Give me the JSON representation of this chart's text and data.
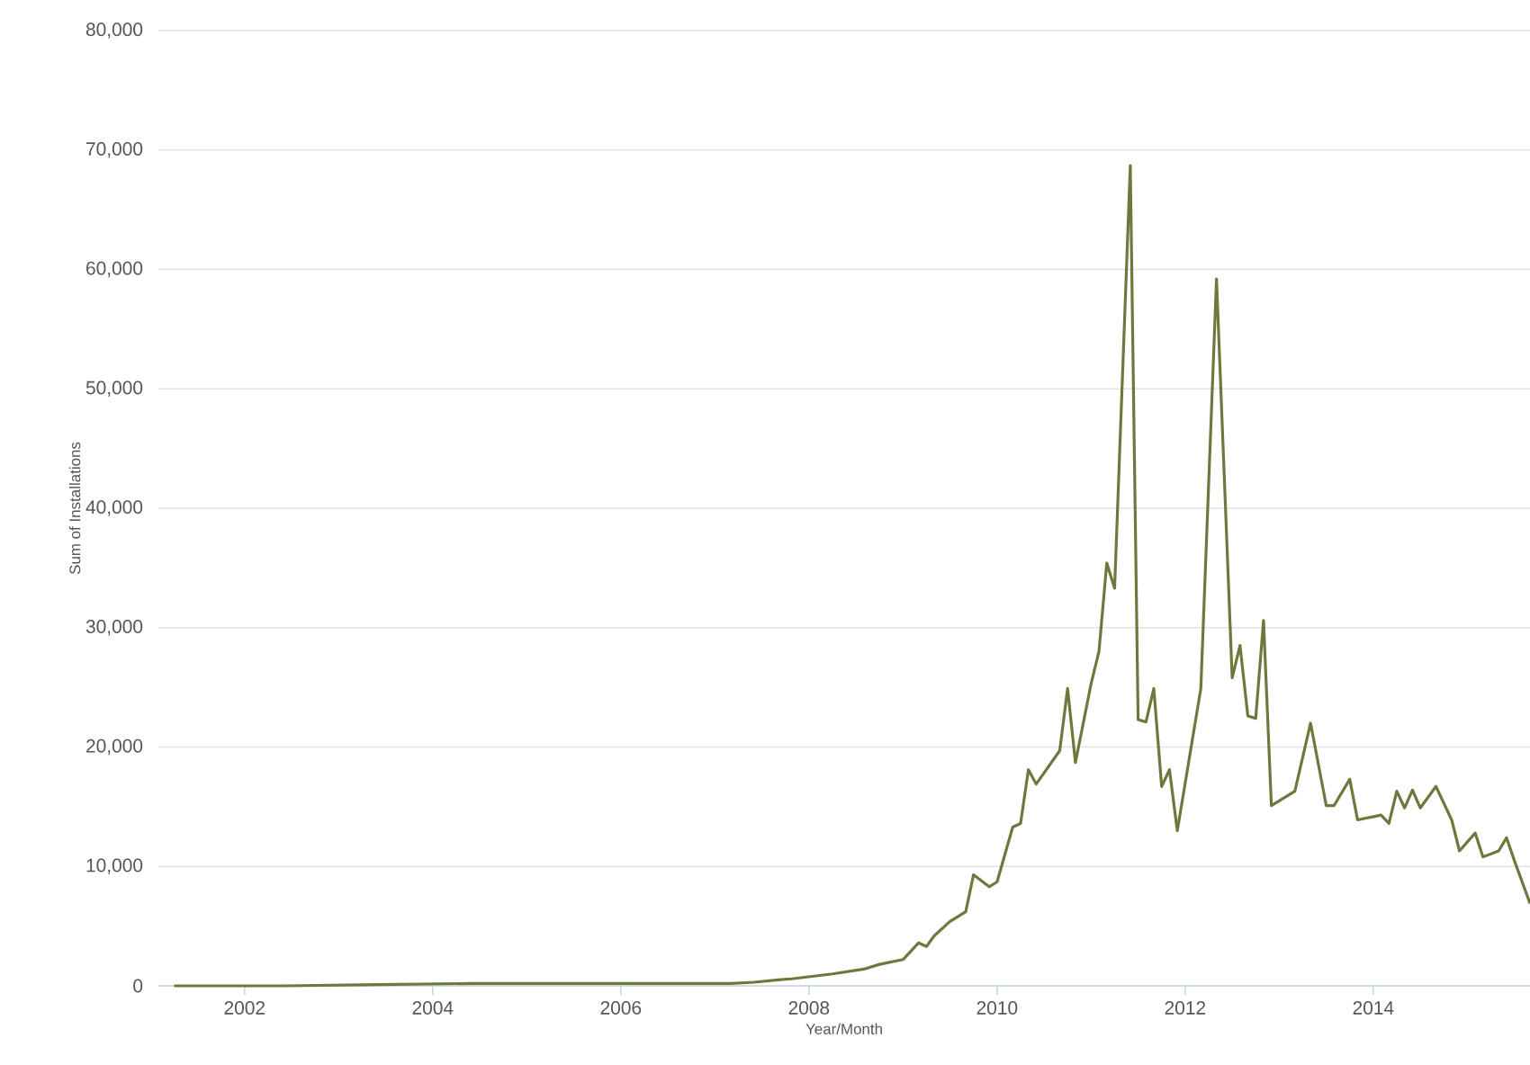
{
  "chart_data": {
    "type": "line",
    "xlabel": "Year/Month",
    "ylabel": "Sum of Installations",
    "x": [
      "2001-04",
      "2002-06",
      "2003-06",
      "2004-06",
      "2005-06",
      "2006-06",
      "2007-03",
      "2007-06",
      "2007-09",
      "2007-11",
      "2008-04",
      "2008-08",
      "2008-10",
      "2009-01",
      "2009-03",
      "2009-04",
      "2009-05",
      "2009-07",
      "2009-09",
      "2009-10",
      "2009-12",
      "2010-01",
      "2010-03",
      "2010-04",
      "2010-05",
      "2010-06",
      "2010-09",
      "2010-10",
      "2010-11",
      "2011-01",
      "2011-02",
      "2011-03",
      "2011-04",
      "2011-06",
      "2011-07",
      "2011-08",
      "2011-09",
      "2011-10",
      "2011-11",
      "2011-12",
      "2012-03",
      "2012-05",
      "2012-07",
      "2012-08",
      "2012-09",
      "2012-10",
      "2012-11",
      "2012-12",
      "2013-03",
      "2013-05",
      "2013-07",
      "2013-08",
      "2013-10",
      "2013-11",
      "2014-02",
      "2014-03",
      "2014-04",
      "2014-05",
      "2014-06",
      "2014-07",
      "2014-09",
      "2014-11",
      "2014-12",
      "2015-02",
      "2015-03",
      "2015-05",
      "2015-06",
      "2015-07",
      "2015-09"
    ],
    "series": [
      {
        "color": "#6b7a3c",
        "values": [
          0,
          0,
          100,
          200,
          200,
          200,
          200,
          300,
          500,
          600,
          1000,
          1400,
          1800,
          2200,
          3600,
          3300,
          4200,
          5400,
          6200,
          9300,
          8300,
          8700,
          13300,
          13600,
          18100,
          16900,
          19700,
          24900,
          18700,
          25300,
          28000,
          35400,
          33300,
          68700,
          22300,
          22100,
          24900,
          16700,
          18100,
          13000,
          24900,
          59200,
          25800,
          28500,
          22600,
          22400,
          30600,
          15100,
          16300,
          22000,
          15100,
          15100,
          17300,
          13900,
          14300,
          13600,
          16300,
          14900,
          16400,
          14900,
          16700,
          13900,
          11300,
          12800,
          10800,
          11300,
          12400,
          10500,
          6900
        ]
      }
    ],
    "xlim": [
      "2001-02",
      "2015-09"
    ],
    "xticks": [
      "2002",
      "2004",
      "2006",
      "2008",
      "2010",
      "2012",
      "2014"
    ],
    "ylim": [
      0,
      80000
    ],
    "yticks": [
      0,
      {
        "value": 10000,
        "label": "10,000"
      },
      {
        "value": 20000,
        "label": "20,000"
      },
      {
        "value": 30000,
        "label": "30,000"
      },
      {
        "value": 40000,
        "label": "40,000"
      },
      {
        "value": 50000,
        "label": "50,000"
      },
      {
        "value": 60000,
        "label": "60,000"
      },
      {
        "value": 70000,
        "label": "70,000"
      },
      {
        "value": 80000,
        "label": "80,000"
      }
    ],
    "grid": "y"
  }
}
